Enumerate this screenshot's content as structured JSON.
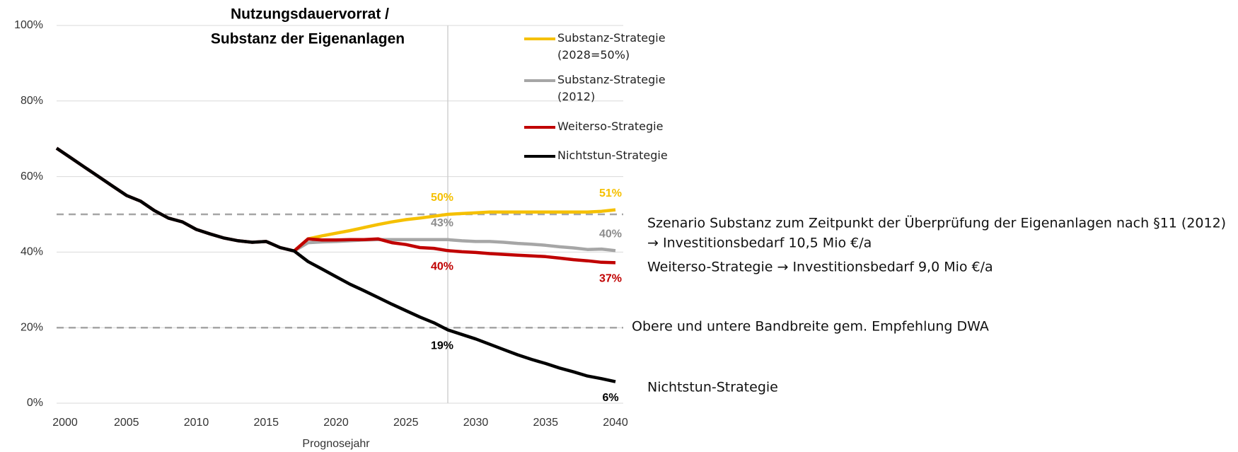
{
  "chart_data": {
    "type": "line",
    "title": [
      "Nutzungsdauervorrat  /",
      "Substanz der Eigenanlagen"
    ],
    "x_label": "Prognosejahr",
    "x": [
      2000,
      2001,
      2002,
      2003,
      2004,
      2005,
      2006,
      2007,
      2008,
      2009,
      2010,
      2011,
      2012,
      2013,
      2014,
      2015,
      2016,
      2017,
      2018,
      2019,
      2020,
      2021,
      2022,
      2023,
      2024,
      2025,
      2026,
      2027,
      2028,
      2029,
      2030,
      2031,
      2032,
      2033,
      2034,
      2035,
      2036,
      2037,
      2038,
      2039,
      2040
    ],
    "xlim": [
      2000,
      2040
    ],
    "xticks": [
      2000,
      2005,
      2010,
      2015,
      2020,
      2025,
      2030,
      2035,
      2040
    ],
    "ylim": [
      0,
      100
    ],
    "yticks": [
      {
        "value": 0,
        "label": "0%"
      },
      {
        "value": 20,
        "label": "20%"
      },
      {
        "value": 40,
        "label": "40%"
      },
      {
        "value": 60,
        "label": "60%"
      },
      {
        "value": 80,
        "label": "80%"
      },
      {
        "value": 100,
        "label": "100%"
      }
    ],
    "grid": true,
    "reference_lines": [
      50,
      20
    ],
    "vline": 2028,
    "series": [
      {
        "name": "Substanz-Strategie (2028=50%)",
        "color": "#f5c000",
        "values": [
          null,
          null,
          null,
          null,
          null,
          null,
          null,
          null,
          null,
          null,
          null,
          null,
          null,
          null,
          null,
          null,
          null,
          40.3,
          43.5,
          44.3,
          45,
          45.7,
          46.5,
          47.3,
          48,
          48.6,
          49,
          49.5,
          50,
          50.2,
          50.4,
          50.6,
          50.6,
          50.6,
          50.6,
          50.6,
          50.6,
          50.6,
          50.6,
          50.8,
          51.2
        ],
        "value_labels": [
          null,
          null,
          null,
          null,
          null,
          null,
          null,
          null,
          null,
          null,
          null,
          null,
          null,
          null,
          null,
          null,
          null,
          null,
          null,
          null,
          null,
          null,
          null,
          null,
          null,
          null,
          null,
          null,
          "50%",
          null,
          null,
          null,
          null,
          null,
          null,
          null,
          null,
          null,
          null,
          null,
          "51%"
        ]
      },
      {
        "name": "Substanz-Strategie (2012)",
        "color": "#a6a6a6",
        "values": [
          null,
          null,
          null,
          null,
          null,
          null,
          null,
          null,
          null,
          null,
          null,
          null,
          null,
          null,
          null,
          null,
          null,
          40.3,
          42.5,
          42.7,
          42.8,
          43,
          43.2,
          43.3,
          43.3,
          43.3,
          43.3,
          43.3,
          43.3,
          43,
          42.8,
          42.8,
          42.6,
          42.3,
          42.1,
          41.8,
          41.4,
          41.1,
          40.7,
          40.8,
          40.4
        ],
        "value_labels": [
          null,
          null,
          null,
          null,
          null,
          null,
          null,
          null,
          null,
          null,
          null,
          null,
          null,
          null,
          null,
          null,
          null,
          null,
          null,
          null,
          null,
          null,
          null,
          null,
          null,
          null,
          null,
          null,
          "43%",
          null,
          null,
          null,
          null,
          null,
          null,
          null,
          null,
          null,
          null,
          null,
          "40%"
        ]
      },
      {
        "name": "Weiterso-Strategie",
        "color": "#c00000",
        "values": [
          67.5,
          65,
          62.5,
          60,
          57.5,
          55,
          53.5,
          51,
          49,
          48,
          46,
          44.8,
          43.7,
          43,
          42.6,
          42.8,
          41.2,
          40.3,
          43.5,
          43.2,
          43.2,
          43.3,
          43.3,
          43.5,
          42.5,
          42,
          41.2,
          41,
          40.4,
          40.1,
          39.9,
          39.6,
          39.4,
          39.2,
          39,
          38.8,
          38.4,
          38,
          37.7,
          37.3,
          37.2
        ],
        "value_labels": [
          null,
          null,
          null,
          null,
          null,
          null,
          null,
          null,
          null,
          null,
          null,
          null,
          null,
          null,
          null,
          null,
          null,
          null,
          null,
          null,
          null,
          null,
          null,
          null,
          null,
          null,
          null,
          null,
          "40%",
          null,
          null,
          null,
          null,
          null,
          null,
          null,
          null,
          null,
          null,
          null,
          "37%"
        ]
      },
      {
        "name": "Nichtstun-Strategie",
        "color": "#000000",
        "values": [
          67.5,
          65,
          62.5,
          60,
          57.5,
          55,
          53.5,
          51,
          49,
          48,
          46,
          44.8,
          43.7,
          43,
          42.6,
          42.8,
          41.2,
          40.3,
          37.5,
          35.5,
          33.5,
          31.5,
          29.8,
          28,
          26.2,
          24.5,
          22.8,
          21.3,
          19.4,
          18.2,
          17,
          15.6,
          14.2,
          12.8,
          11.6,
          10.5,
          9.3,
          8.3,
          7.2,
          6.5,
          5.7
        ],
        "value_labels": [
          null,
          null,
          null,
          null,
          null,
          null,
          null,
          null,
          null,
          null,
          null,
          null,
          null,
          null,
          null,
          null,
          null,
          null,
          null,
          null,
          null,
          null,
          null,
          null,
          null,
          null,
          null,
          null,
          "19%",
          null,
          null,
          null,
          null,
          null,
          null,
          null,
          null,
          null,
          null,
          null,
          "6%"
        ]
      }
    ],
    "annotations": [
      "Szenario Substanz zum Zeitpunkt der Überprüfung der Eigenanlagen nach §11 (2012)",
      "→ Investitionsbedarf 10,5 Mio €/a",
      "Weiterso-Strategie → Investitionsbedarf 9,0 Mio €/a",
      "Obere und untere Bandbreite gem. Empfehlung DWA",
      "Nichtstun-Strategie"
    ]
  }
}
